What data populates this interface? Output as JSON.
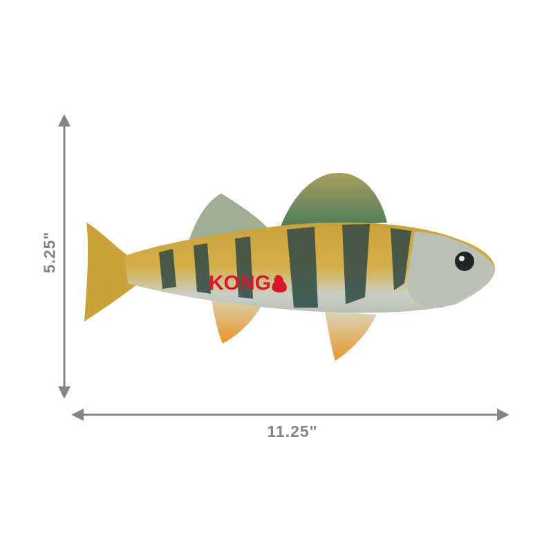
{
  "product": {
    "brand_logo_text": "KONG",
    "width_label": "11.25\"",
    "height_label": "5.25\""
  },
  "colors": {
    "dimension_arrow": "#858585",
    "logo_red": "#d7182a",
    "fish_yellow": "#d8a830",
    "fish_stripe": "#2f4a45",
    "fin_orange": "#e89a2a"
  }
}
